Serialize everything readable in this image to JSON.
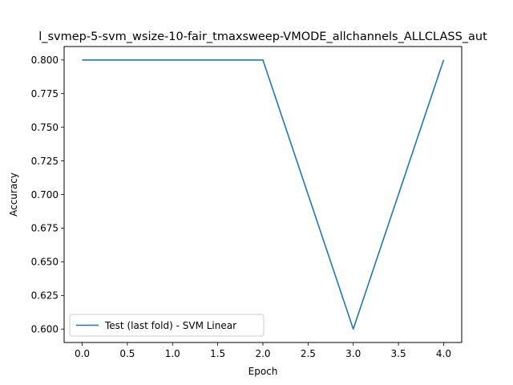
{
  "chart_data": {
    "type": "line",
    "title": "l_svmep-5-svm_wsize-10-fair_tmaxsweep-VMODE_allchannels_ALLCLASS_aut",
    "xlabel": "Epoch",
    "ylabel": "Accuracy",
    "xlim": [
      -0.2,
      4.2
    ],
    "ylim": [
      0.59,
      0.81
    ],
    "x_ticks": [
      "0.0",
      "0.5",
      "1.0",
      "1.5",
      "2.0",
      "2.5",
      "3.0",
      "3.5",
      "4.0"
    ],
    "y_ticks": [
      "0.600",
      "0.625",
      "0.650",
      "0.675",
      "0.700",
      "0.725",
      "0.750",
      "0.775",
      "0.800"
    ],
    "grid": false,
    "legend_position": "lower-left",
    "series": [
      {
        "name": "Test (last fold) - SVM Linear",
        "color": "#1f77b4",
        "x": [
          0,
          1,
          2,
          3,
          4
        ],
        "values": [
          0.8,
          0.8,
          0.8,
          0.6,
          0.8
        ]
      }
    ]
  }
}
